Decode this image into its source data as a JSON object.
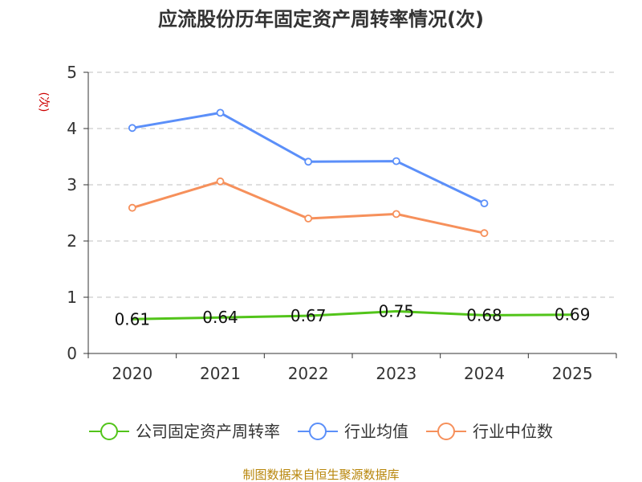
{
  "chart_data": {
    "type": "line",
    "title": "应流股份历年固定资产周转率情况(次)",
    "ylabel": "(次)",
    "xlabel": "",
    "categories": [
      "2020",
      "2021",
      "2022",
      "2023",
      "2024",
      "2025"
    ],
    "ylim": [
      0,
      5
    ],
    "yticks": [
      0,
      1,
      2,
      3,
      4,
      5
    ],
    "grid": true,
    "legend_position": "bottom",
    "series": [
      {
        "name": "公司固定资产周转率",
        "color": "#52c41a",
        "values": [
          0.61,
          0.64,
          0.67,
          0.75,
          0.68,
          0.69
        ],
        "show_labels": true,
        "show_markers": false
      },
      {
        "name": "行业均值",
        "color": "#5b8ff9",
        "values": [
          4.01,
          4.28,
          3.41,
          3.42,
          2.67,
          null
        ],
        "show_labels": false,
        "show_markers": true
      },
      {
        "name": "行业中位数",
        "color": "#f6905b",
        "values": [
          2.59,
          3.06,
          2.4,
          2.48,
          2.14,
          null
        ],
        "show_labels": false,
        "show_markers": true
      }
    ],
    "source": "制图数据来自恒生聚源数据库"
  }
}
